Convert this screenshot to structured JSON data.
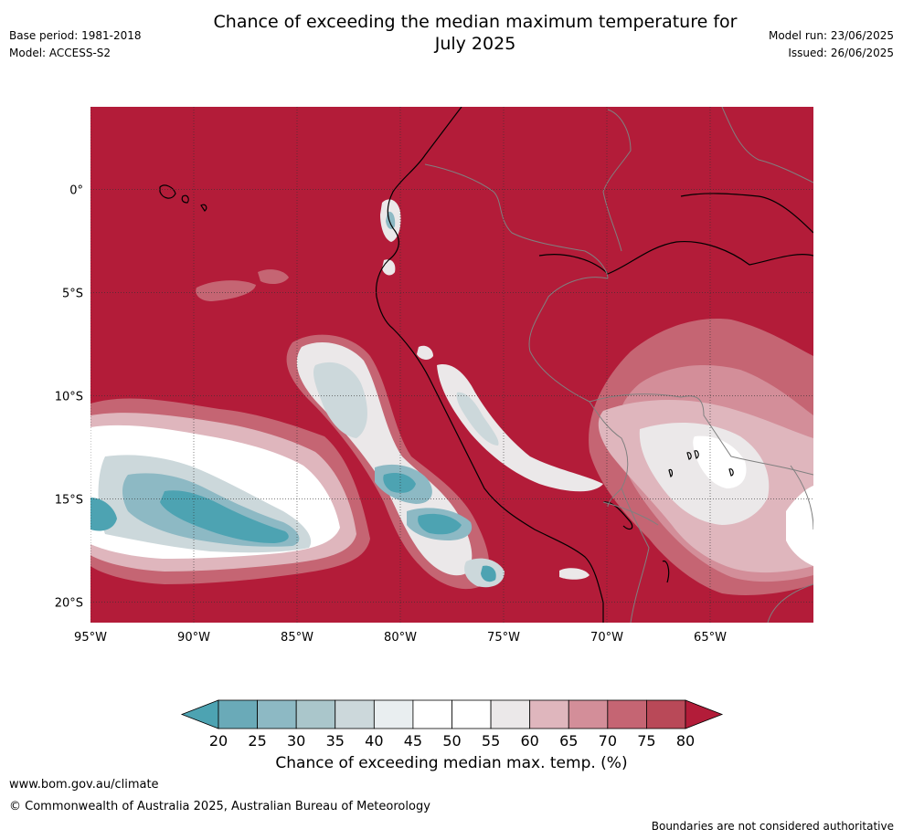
{
  "header": {
    "title_line1": "Chance of exceeding the median maximum temperature for",
    "title_line2": "July 2025",
    "base_period": "Base period: 1981-2018",
    "model": "Model: ACCESS-S2",
    "model_run": "Model run: 23/06/2025",
    "issued": "Issued: 26/06/2025"
  },
  "map": {
    "projection": "lat-lon",
    "lon_range": [
      -95,
      -60
    ],
    "lat_range": [
      -21,
      4
    ],
    "lat_ticks": [
      {
        "value": 0,
        "label": "0°"
      },
      {
        "value": -5,
        "label": "5°S"
      },
      {
        "value": -10,
        "label": "10°S"
      },
      {
        "value": -15,
        "label": "15°S"
      },
      {
        "value": -20,
        "label": "20°S"
      }
    ],
    "lon_ticks": [
      {
        "value": -95,
        "label": "95°W"
      },
      {
        "value": -90,
        "label": "90°W"
      },
      {
        "value": -85,
        "label": "85°W"
      },
      {
        "value": -80,
        "label": "80°W"
      },
      {
        "value": -75,
        "label": "75°W"
      },
      {
        "value": -70,
        "label": "70°W"
      },
      {
        "value": -65,
        "label": "65°W"
      }
    ],
    "background_color": "#b31c39"
  },
  "colorbar": {
    "label": "Chance of exceeding median max. temp. (%)",
    "ticks": [
      "20",
      "25",
      "30",
      "35",
      "40",
      "45",
      "50",
      "55",
      "60",
      "65",
      "70",
      "75",
      "80"
    ],
    "colors": [
      "#4da3b2",
      "#6aaab8",
      "#8db9c4",
      "#aac6cb",
      "#ccd8db",
      "#e9eef0",
      "#ffffff",
      "#ffffff",
      "#ebe8e9",
      "#dfb6bd",
      "#d38e99",
      "#c56573",
      "#b94958",
      "#b31c39"
    ]
  },
  "footer": {
    "url": "www.bom.gov.au/climate",
    "copyright": "© Commonwealth of Australia 2025, Australian Bureau of Meteorology",
    "disclaimer": "Boundaries are not considered authoritative"
  }
}
